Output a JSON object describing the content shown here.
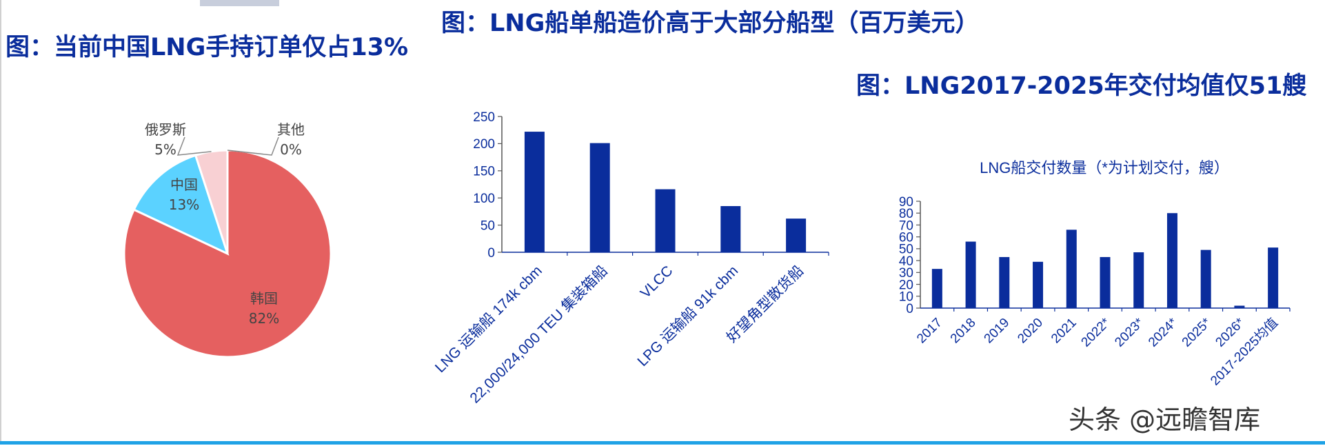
{
  "titles": {
    "pie": "图：当前中国LNG手持订单仅占13%",
    "bar": "图：LNG船单船造价高于大部分船型（百万美元）",
    "delivery": "图：LNG2017-2025年交付均值仅51艘"
  },
  "watermark": "头条 @远瞻智库",
  "colors": {
    "title": "#0a2d9c",
    "bar": "#0a2d9c",
    "korea": "#e56060",
    "china": "#5bd2ff",
    "russia": "#f8d0d3",
    "other": "#bbbbbb",
    "rule": "#1fa2e6"
  },
  "chart_data": [
    {
      "type": "pie",
      "title": "图：当前中国LNG手持订单仅占13%",
      "slices": [
        {
          "name": "韩国",
          "value": 82,
          "label": "82%",
          "color": "#e56060"
        },
        {
          "name": "中国",
          "value": 13,
          "label": "13%",
          "color": "#5bd2ff"
        },
        {
          "name": "俄罗斯",
          "value": 5,
          "label": "5%",
          "color": "#f8d0d3"
        },
        {
          "name": "其他",
          "value": 0,
          "label": "0%",
          "color": "#bbbbbb"
        }
      ]
    },
    {
      "type": "bar",
      "title": "图：LNG船单船造价高于大部分船型（百万美元）",
      "categories": [
        "LNG 运输船 174k cbm",
        "22,000/24,000 TEU 集装箱船",
        "VLCC",
        "LPG 运输船 91k cbm",
        "好望角型散货船"
      ],
      "values": [
        222,
        201,
        116,
        85,
        62
      ],
      "ylim": [
        0,
        250
      ],
      "yticks": [
        "0",
        "50",
        "100",
        "150",
        "200",
        "250"
      ]
    },
    {
      "type": "bar",
      "title": "LNG船交付数量（*为计划交付，艘）",
      "categories": [
        "2017",
        "2018",
        "2019",
        "2020",
        "2021",
        "2022*",
        "2023*",
        "2024*",
        "2025*",
        "2026*",
        "2017-2025均值"
      ],
      "values": [
        33,
        56,
        43,
        39,
        66,
        43,
        47,
        80,
        49,
        2,
        51
      ],
      "ylim": [
        0,
        90
      ],
      "yticks": [
        "0",
        "10",
        "20",
        "30",
        "40",
        "50",
        "60",
        "70",
        "80",
        "90"
      ]
    }
  ]
}
